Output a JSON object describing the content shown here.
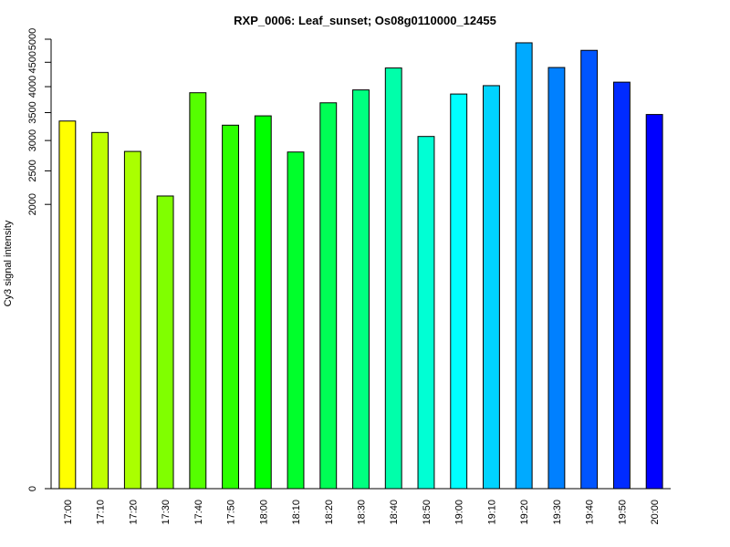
{
  "chart_data": {
    "type": "bar",
    "title": "RXP_0006: Leaf_sunset; Os08g0110000_12455",
    "xlabel": "",
    "ylabel": "Cy3 signal intensity",
    "categories": [
      "17:00",
      "17:10",
      "17:20",
      "17:30",
      "17:40",
      "17:50",
      "18:00",
      "18:10",
      "18:20",
      "18:30",
      "18:40",
      "18:50",
      "19:00",
      "19:10",
      "19:20",
      "19:30",
      "19:40",
      "19:50",
      "20:00"
    ],
    "values": [
      3345,
      3140,
      2815,
      2120,
      3880,
      3270,
      3440,
      2805,
      3685,
      3935,
      4380,
      3070,
      3855,
      4020,
      4920,
      4390,
      4755,
      4090,
      3465
    ],
    "colors": [
      "#ffff00",
      "#bfff00",
      "#aaff00",
      "#80ff00",
      "#55ff00",
      "#2bff00",
      "#00ff00",
      "#00ff2b",
      "#00ff55",
      "#00ff80",
      "#00ffaa",
      "#00ffd4",
      "#00ffff",
      "#00d4ff",
      "#00aaff",
      "#0080ff",
      "#0055ff",
      "#002bff",
      "#0000ff"
    ],
    "yticks": [
      0,
      2000,
      2500,
      3000,
      3500,
      4000,
      4500,
      5000
    ],
    "ylim": [
      0,
      5000
    ],
    "scale": "sqrt",
    "grid": false,
    "legend": "none"
  }
}
